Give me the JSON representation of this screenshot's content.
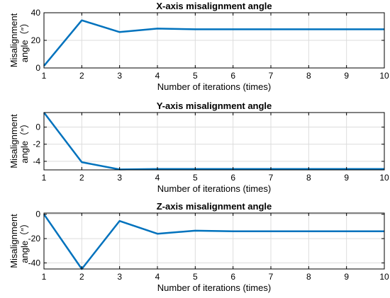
{
  "chart_data": [
    {
      "type": "line",
      "title": "X-axis misalignment angle",
      "xlabel": "Number of iterations (times)",
      "ylabel": [
        "Misalignment",
        "angle（″）"
      ],
      "x": [
        1,
        2,
        3,
        4,
        5,
        6,
        7,
        8,
        9,
        10
      ],
      "xlim": [
        1,
        10
      ],
      "xticks": [
        1,
        2,
        3,
        4,
        5,
        6,
        7,
        8,
        9,
        10
      ],
      "ylim": [
        0,
        40
      ],
      "yticks": [
        0,
        20,
        40
      ],
      "grid": true,
      "series": [
        {
          "values": [
            1.5,
            34.5,
            26,
            28.5,
            28,
            28,
            28,
            28,
            28,
            28
          ],
          "color": "#0072BD"
        }
      ]
    },
    {
      "type": "line",
      "title": "Y-axis misalignment angle",
      "xlabel": "Number of iterations (times)",
      "ylabel": [
        "Misalignment",
        "angle（″）"
      ],
      "x": [
        1,
        2,
        3,
        4,
        5,
        6,
        7,
        8,
        9,
        10
      ],
      "xlim": [
        1,
        10
      ],
      "xticks": [
        1,
        2,
        3,
        4,
        5,
        6,
        7,
        8,
        9,
        10
      ],
      "ylim": [
        -5,
        1.7
      ],
      "yticks": [
        -4,
        -2,
        0
      ],
      "grid": true,
      "series": [
        {
          "values": [
            1.7,
            -4.1,
            -4.95,
            -4.9,
            -4.9,
            -4.9,
            -4.9,
            -4.9,
            -4.9,
            -4.9
          ],
          "color": "#0072BD"
        }
      ]
    },
    {
      "type": "line",
      "title": "Z-axis misalignment angle",
      "xlabel": "Number of iterations (times)",
      "ylabel": [
        "Misalignment",
        "angle（″）"
      ],
      "x": [
        1,
        2,
        3,
        4,
        5,
        6,
        7,
        8,
        9,
        10
      ],
      "xlim": [
        1,
        10
      ],
      "xticks": [
        1,
        2,
        3,
        4,
        5,
        6,
        7,
        8,
        9,
        10
      ],
      "ylim": [
        -45,
        1
      ],
      "yticks": [
        -40,
        -20,
        0
      ],
      "grid": true,
      "series": [
        {
          "values": [
            0,
            -45,
            -5.5,
            -16,
            -13.5,
            -14,
            -14,
            -14,
            -14,
            -14
          ],
          "color": "#0072BD"
        }
      ]
    }
  ]
}
